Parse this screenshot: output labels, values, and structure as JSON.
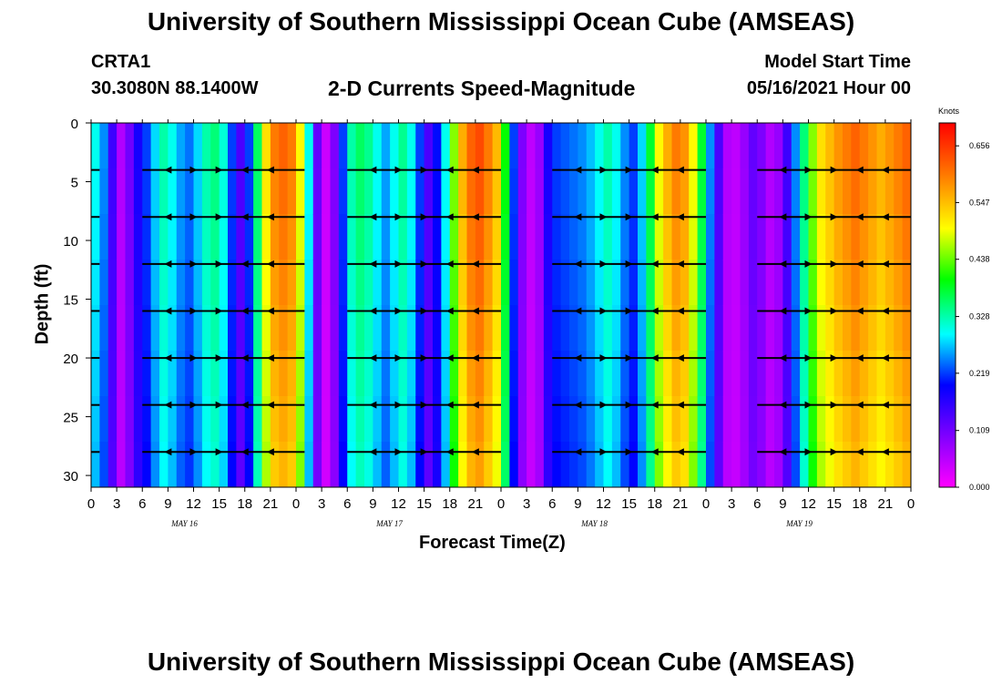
{
  "header": {
    "title": "University of Southern Mississippi Ocean Cube (AMSEAS)",
    "station": "CRTA1",
    "coords": "30.3080N  88.1400W",
    "subtitle": "2-D Currents Speed-Magnitude",
    "model_start_label": "Model Start Time",
    "model_start_value": "05/16/2021 Hour 00"
  },
  "footer": {
    "title": "University of Southern Mississippi Ocean Cube (AMSEAS)"
  },
  "chart_data": {
    "type": "heatmap",
    "xlabel": "Forecast Time(Z)",
    "ylabel": "Depth (ft)",
    "x_hours": [
      0,
      96
    ],
    "y_depth_ft": [
      0,
      31
    ],
    "x_tick_labels": [
      "0",
      "3",
      "6",
      "9",
      "12",
      "15",
      "18",
      "21",
      "0",
      "3",
      "6",
      "9",
      "12",
      "15",
      "18",
      "21",
      "0",
      "3",
      "6",
      "9",
      "12",
      "15",
      "18",
      "21",
      "0",
      "3",
      "6",
      "9",
      "12",
      "15",
      "18",
      "21",
      "0"
    ],
    "day_labels": [
      "MAY 16",
      "MAY 17",
      "MAY 18",
      "MAY 19"
    ],
    "y_ticks": [
      0,
      5,
      10,
      15,
      20,
      25,
      30
    ],
    "colorbar": {
      "unit": "Knots",
      "ticks": [
        "0.656",
        "0.547",
        "0.438",
        "0.328",
        "0.219",
        "0.109",
        "0.000"
      ],
      "range": [
        0.0,
        0.7
      ]
    },
    "surface_speed_by_hour": [
      [
        0,
        0.3
      ],
      [
        1,
        0.25
      ],
      [
        2,
        0.15
      ],
      [
        3,
        0.06
      ],
      [
        4,
        0.11
      ],
      [
        5,
        0.18
      ],
      [
        6,
        0.22
      ],
      [
        7,
        0.28
      ],
      [
        8,
        0.33
      ],
      [
        9,
        0.3
      ],
      [
        10,
        0.26
      ],
      [
        11,
        0.24
      ],
      [
        12,
        0.28
      ],
      [
        13,
        0.33
      ],
      [
        14,
        0.35
      ],
      [
        15,
        0.31
      ],
      [
        16,
        0.22
      ],
      [
        17,
        0.14
      ],
      [
        18,
        0.22
      ],
      [
        19,
        0.36
      ],
      [
        20,
        0.52
      ],
      [
        21,
        0.6
      ],
      [
        22,
        0.62
      ],
      [
        23,
        0.6
      ],
      [
        24,
        0.5
      ],
      [
        25,
        0.3
      ],
      [
        26,
        0.12
      ],
      [
        27,
        0.04
      ],
      [
        28,
        0.1
      ],
      [
        29,
        0.22
      ],
      [
        30,
        0.33
      ],
      [
        31,
        0.36
      ],
      [
        32,
        0.34
      ],
      [
        33,
        0.3
      ],
      [
        34,
        0.26
      ],
      [
        35,
        0.3
      ],
      [
        36,
        0.34
      ],
      [
        37,
        0.3
      ],
      [
        38,
        0.22
      ],
      [
        39,
        0.14
      ],
      [
        40,
        0.2
      ],
      [
        41,
        0.3
      ],
      [
        42,
        0.45
      ],
      [
        43,
        0.56
      ],
      [
        44,
        0.62
      ],
      [
        45,
        0.64
      ],
      [
        46,
        0.6
      ],
      [
        47,
        0.55
      ],
      [
        48,
        0.4
      ],
      [
        49,
        0.22
      ],
      [
        50,
        0.1
      ],
      [
        51,
        0.05
      ],
      [
        52,
        0.08
      ],
      [
        53,
        0.18
      ],
      [
        54,
        0.22
      ],
      [
        55,
        0.23
      ],
      [
        56,
        0.24
      ],
      [
        57,
        0.25
      ],
      [
        58,
        0.27
      ],
      [
        59,
        0.3
      ],
      [
        60,
        0.33
      ],
      [
        61,
        0.3
      ],
      [
        62,
        0.25
      ],
      [
        63,
        0.22
      ],
      [
        64,
        0.28
      ],
      [
        65,
        0.38
      ],
      [
        66,
        0.5
      ],
      [
        67,
        0.56
      ],
      [
        68,
        0.6
      ],
      [
        69,
        0.58
      ],
      [
        70,
        0.5
      ],
      [
        71,
        0.38
      ],
      [
        72,
        0.25
      ],
      [
        73,
        0.14
      ],
      [
        74,
        0.06
      ],
      [
        75,
        0.05
      ],
      [
        76,
        0.08
      ],
      [
        77,
        0.12
      ],
      [
        78,
        0.1
      ],
      [
        79,
        0.06
      ],
      [
        80,
        0.08
      ],
      [
        81,
        0.15
      ],
      [
        82,
        0.25
      ],
      [
        83,
        0.35
      ],
      [
        84,
        0.45
      ],
      [
        85,
        0.52
      ],
      [
        86,
        0.55
      ],
      [
        87,
        0.58
      ],
      [
        88,
        0.6
      ],
      [
        89,
        0.62
      ],
      [
        90,
        0.6
      ],
      [
        91,
        0.58
      ],
      [
        92,
        0.56
      ],
      [
        93,
        0.58
      ],
      [
        94,
        0.6
      ],
      [
        95,
        0.62
      ],
      [
        96,
        0.6
      ]
    ],
    "vector_depths_ft": [
      4,
      8,
      12,
      16,
      20,
      24,
      28
    ]
  }
}
